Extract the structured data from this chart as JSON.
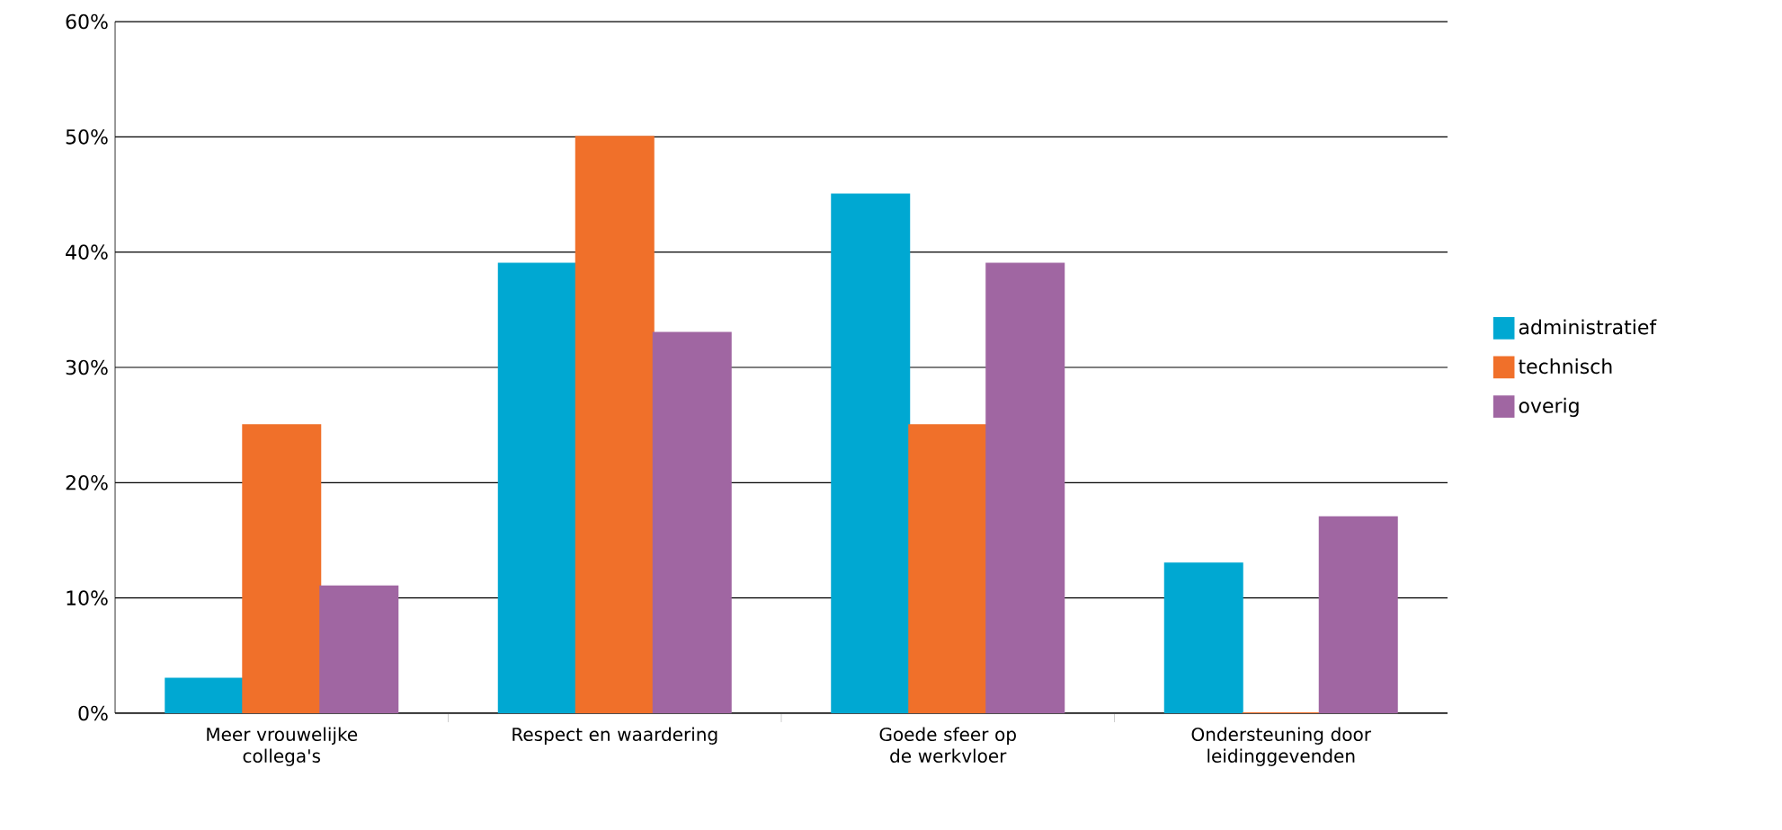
{
  "chart_data": {
    "type": "bar",
    "categories": [
      "Meer vrouwelijke collega's",
      "Respect en waardering",
      "Goede sfeer op de werkvloer",
      "Ondersteuning door leidinggevenden"
    ],
    "series": [
      {
        "name": "administratief",
        "color": "#00a8d2",
        "values": [
          3,
          39,
          45,
          13
        ]
      },
      {
        "name": "technisch",
        "color": "#f0702a",
        "values": [
          25,
          50,
          25,
          0
        ]
      },
      {
        "name": "overig",
        "color": "#a066a2",
        "values": [
          11,
          33,
          39,
          17
        ]
      }
    ],
    "ylim": [
      0,
      60
    ],
    "yticks": [
      {
        "value": 0,
        "label": "0%"
      },
      {
        "value": 10,
        "label": "10%"
      },
      {
        "value": 20,
        "label": "20%"
      },
      {
        "value": 30,
        "label": "30%"
      },
      {
        "value": 40,
        "label": "40%"
      },
      {
        "value": 50,
        "label": "50%"
      },
      {
        "value": 60,
        "label": "60%"
      }
    ],
    "grid": "y",
    "legend": "right"
  }
}
